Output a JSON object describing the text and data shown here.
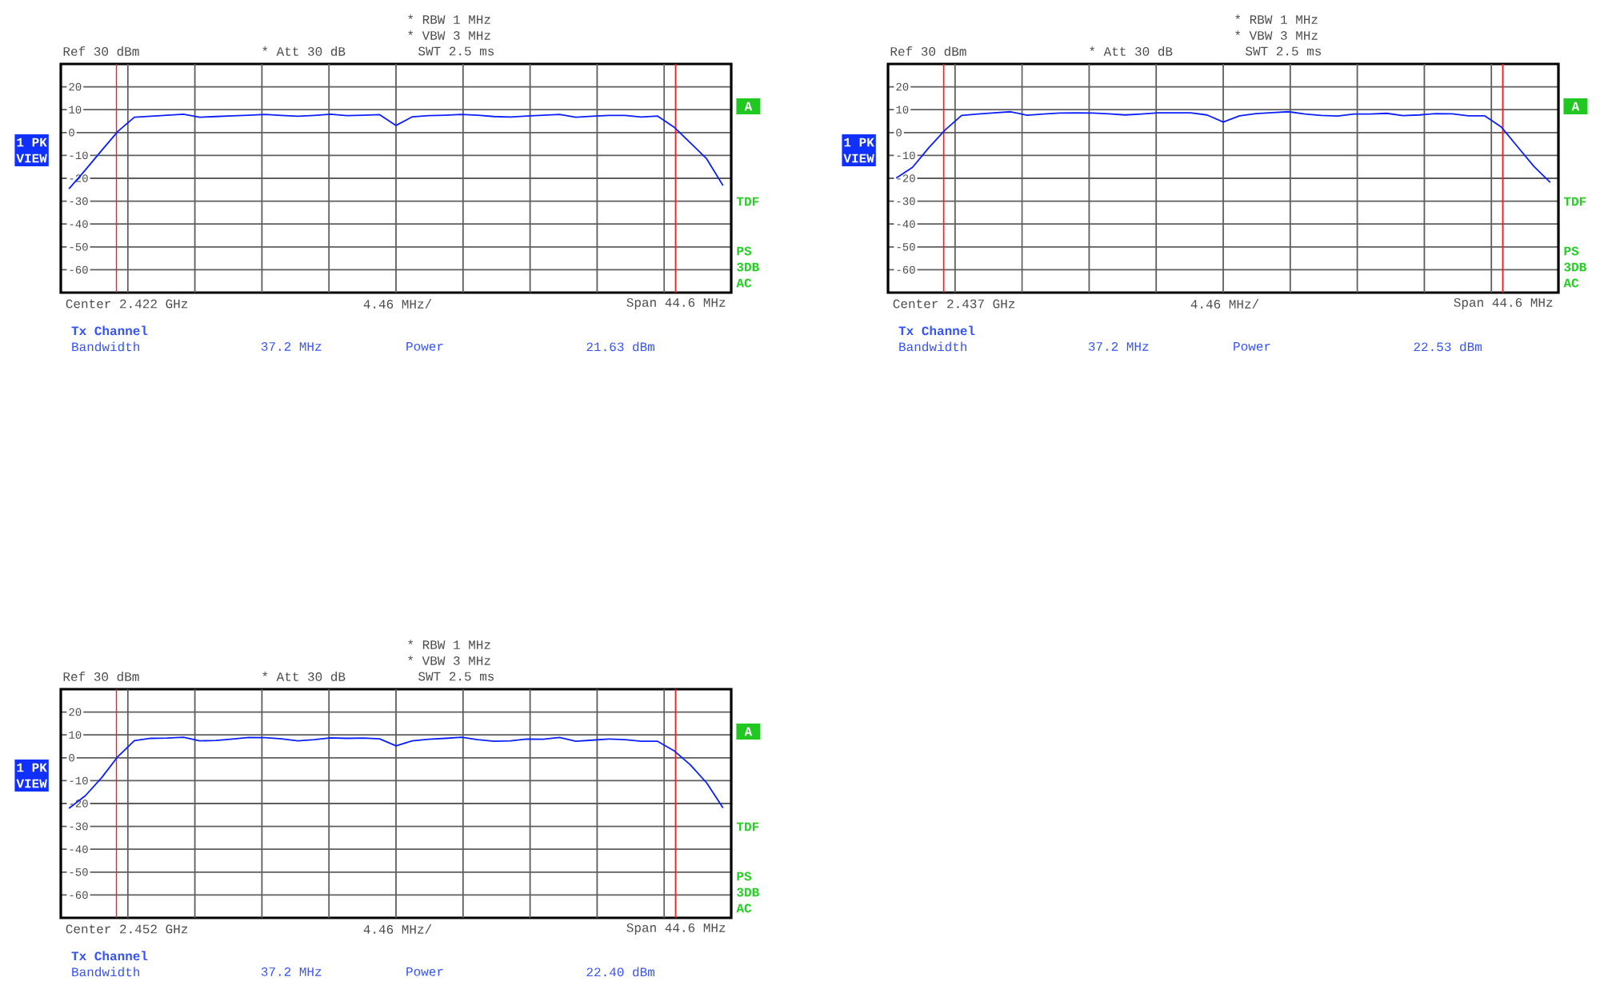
{
  "chart_data": [
    {
      "type": "line",
      "categories": [
        null,
        null,
        null,
        null,
        null,
        null,
        null,
        null,
        null,
        null,
        null,
        null,
        null,
        null,
        null,
        null,
        null,
        null,
        null,
        null,
        null,
        null,
        null,
        null,
        null,
        null,
        null,
        null,
        null,
        null,
        null,
        null,
        null,
        null,
        null,
        null,
        null,
        null,
        null,
        null,
        null
      ],
      "series": [
        {
          "color": "#0a1eff",
          "values": [
            -24.6,
            -16.4,
            -7.8,
            0.6,
            6.7,
            7.1,
            7.6,
            8.0,
            6.7,
            7.0,
            7.3,
            7.6,
            7.9,
            7.5,
            7.1,
            7.5,
            8.0,
            7.4,
            7.6,
            7.8,
            3.1,
            6.9,
            7.4,
            7.6,
            7.9,
            7.6,
            7.0,
            6.8,
            7.2,
            7.6,
            7.9,
            6.7,
            7.1,
            7.5,
            7.5,
            6.8,
            7.2,
            2.4,
            -4.5,
            -11.5,
            -23.2
          ]
        }
      ],
      "ylim": [
        -70,
        30
      ],
      "yticks": [
        -60,
        -50,
        -40,
        -30,
        -20,
        -10,
        0,
        10,
        20
      ],
      "grid": true,
      "tick_labels": "y",
      "annotations": [
        "* RBW 1 MHz",
        "* VBW 3 MHz",
        "Ref 30 dBm",
        "* Att 30 dB",
        "SWT 2.5 ms",
        "1 PK",
        "VIEW",
        "A",
        "TDF",
        "PS",
        "3DB",
        "AC",
        "Center 2.422 GHz",
        "4.46 MHz/",
        "Span 44.6 MHz",
        "Tx Channel",
        "Bandwidth",
        "37.2 MHz",
        "Power",
        "21.63 dBm"
      ]
    },
    {
      "type": "line",
      "categories": [
        null,
        null,
        null,
        null,
        null,
        null,
        null,
        null,
        null,
        null,
        null,
        null,
        null,
        null,
        null,
        null,
        null,
        null,
        null,
        null,
        null,
        null,
        null,
        null,
        null,
        null,
        null,
        null,
        null,
        null,
        null,
        null,
        null,
        null,
        null,
        null,
        null,
        null,
        null,
        null,
        null
      ],
      "series": [
        {
          "color": "#0a1eff",
          "values": [
            -19.9,
            -15.2,
            -6.6,
            1.2,
            7.5,
            8.1,
            8.6,
            9.1,
            7.6,
            8.1,
            8.5,
            8.6,
            8.5,
            8.2,
            7.7,
            8.1,
            8.6,
            8.6,
            8.6,
            7.7,
            4.6,
            7.3,
            8.3,
            8.7,
            9.1,
            8.1,
            7.5,
            7.2,
            8.1,
            8.1,
            8.4,
            7.4,
            7.7,
            8.3,
            8.2,
            7.3,
            7.3,
            2.5,
            -6.2,
            -14.8,
            -21.8
          ]
        }
      ],
      "ylim": [
        -70,
        30
      ],
      "yticks": [
        -60,
        -50,
        -40,
        -30,
        -20,
        -10,
        0,
        10,
        20
      ],
      "grid": true,
      "tick_labels": "y",
      "annotations": [
        "* RBW 1 MHz",
        "* VBW 3 MHz",
        "Ref 30 dBm",
        "* Att 30 dB",
        "SWT 2.5 ms",
        "1 PK",
        "VIEW",
        "A",
        "TDF",
        "PS",
        "3DB",
        "AC",
        "Center 2.437 GHz",
        "4.46 MHz/",
        "Span 44.6 MHz",
        "Tx Channel",
        "Bandwidth",
        "37.2 MHz",
        "Power",
        "22.53 dBm"
      ]
    },
    {
      "type": "line",
      "categories": [
        null,
        null,
        null,
        null,
        null,
        null,
        null,
        null,
        null,
        null,
        null,
        null,
        null,
        null,
        null,
        null,
        null,
        null,
        null,
        null,
        null,
        null,
        null,
        null,
        null,
        null,
        null,
        null,
        null,
        null,
        null,
        null,
        null,
        null,
        null,
        null,
        null,
        null,
        null,
        null,
        null
      ],
      "series": [
        {
          "color": "#0a1eff",
          "values": [
            -22.1,
            -16.6,
            -8.7,
            0.6,
            7.5,
            8.5,
            8.6,
            9.0,
            7.4,
            7.6,
            8.2,
            8.9,
            8.8,
            8.3,
            7.4,
            7.9,
            8.7,
            8.5,
            8.6,
            8.3,
            5.2,
            7.4,
            8.1,
            8.5,
            9.0,
            7.9,
            7.2,
            7.4,
            8.2,
            8.1,
            8.9,
            7.2,
            7.7,
            8.2,
            7.9,
            7.2,
            7.2,
            3.1,
            -3.1,
            -11.0,
            -21.9
          ]
        }
      ],
      "ylim": [
        -70,
        30
      ],
      "yticks": [
        -60,
        -50,
        -40,
        -30,
        -20,
        -10,
        0,
        10,
        20
      ],
      "grid": true,
      "tick_labels": "y",
      "annotations": [
        "* RBW 1 MHz",
        "* VBW 3 MHz",
        "Ref 30 dBm",
        "* Att 30 dB",
        "SWT 2.5 ms",
        "1 PK",
        "VIEW",
        "A",
        "TDF",
        "PS",
        "3DB",
        "AC",
        "Center 2.452 GHz",
        "4.46 MHz/",
        "Span 44.6 MHz",
        "Tx Channel",
        "Bandwidth",
        "37.2 MHz",
        "Power",
        "22.40 dBm"
      ]
    }
  ]
}
